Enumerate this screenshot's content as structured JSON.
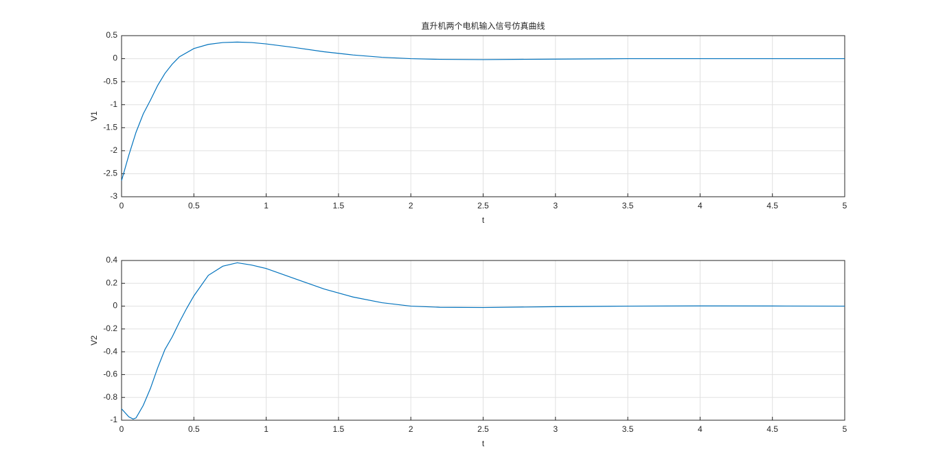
{
  "chart_data": [
    {
      "type": "line",
      "title": "直升机两个电机输入信号仿真曲线",
      "xlabel": "t",
      "ylabel": "V1",
      "x": [
        0,
        0.05,
        0.1,
        0.15,
        0.2,
        0.25,
        0.3,
        0.35,
        0.4,
        0.5,
        0.6,
        0.7,
        0.8,
        0.9,
        1.0,
        1.2,
        1.4,
        1.6,
        1.8,
        2.0,
        2.2,
        2.5,
        3,
        3.5,
        4,
        4.5,
        5
      ],
      "series": [
        {
          "name": "V1",
          "color": "#0072bd",
          "values": [
            -2.65,
            -2.1,
            -1.6,
            -1.2,
            -0.9,
            -0.58,
            -0.32,
            -0.12,
            0.04,
            0.22,
            0.31,
            0.35,
            0.36,
            0.35,
            0.32,
            0.24,
            0.15,
            0.08,
            0.03,
            0.0,
            -0.015,
            -0.02,
            -0.01,
            0,
            0,
            0,
            0
          ]
        }
      ],
      "xlim": [
        0,
        5
      ],
      "xticks": [
        0,
        0.5,
        1,
        1.5,
        2,
        2.5,
        3,
        3.5,
        4,
        4.5,
        5
      ],
      "ylim": [
        -3,
        0.5
      ],
      "yticks": [
        -3,
        -2.5,
        -2,
        -1.5,
        -1,
        -0.5,
        0,
        0.5
      ],
      "grid": true
    },
    {
      "type": "line",
      "xlabel": "t",
      "ylabel": "V2",
      "x": [
        0,
        0.05,
        0.08,
        0.1,
        0.15,
        0.2,
        0.25,
        0.3,
        0.35,
        0.4,
        0.45,
        0.5,
        0.6,
        0.7,
        0.8,
        0.9,
        1.0,
        1.2,
        1.4,
        1.6,
        1.8,
        2.0,
        2.2,
        2.5,
        3,
        3.5,
        4,
        4.5,
        5
      ],
      "series": [
        {
          "name": "V2",
          "color": "#0072bd",
          "values": [
            -0.9,
            -0.97,
            -0.99,
            -0.98,
            -0.87,
            -0.72,
            -0.54,
            -0.38,
            -0.27,
            -0.14,
            -0.02,
            0.09,
            0.27,
            0.35,
            0.38,
            0.36,
            0.33,
            0.24,
            0.15,
            0.08,
            0.03,
            0.0,
            -0.01,
            -0.012,
            -0.005,
            0,
            0.002,
            0.001,
            0
          ]
        }
      ],
      "xlim": [
        0,
        5
      ],
      "xticks": [
        0,
        0.5,
        1,
        1.5,
        2,
        2.5,
        3,
        3.5,
        4,
        4.5,
        5
      ],
      "ylim": [
        -1,
        0.4
      ],
      "yticks": [
        -1,
        -0.8,
        -0.6,
        -0.4,
        -0.2,
        0,
        0.2,
        0.4
      ],
      "grid": true
    }
  ]
}
